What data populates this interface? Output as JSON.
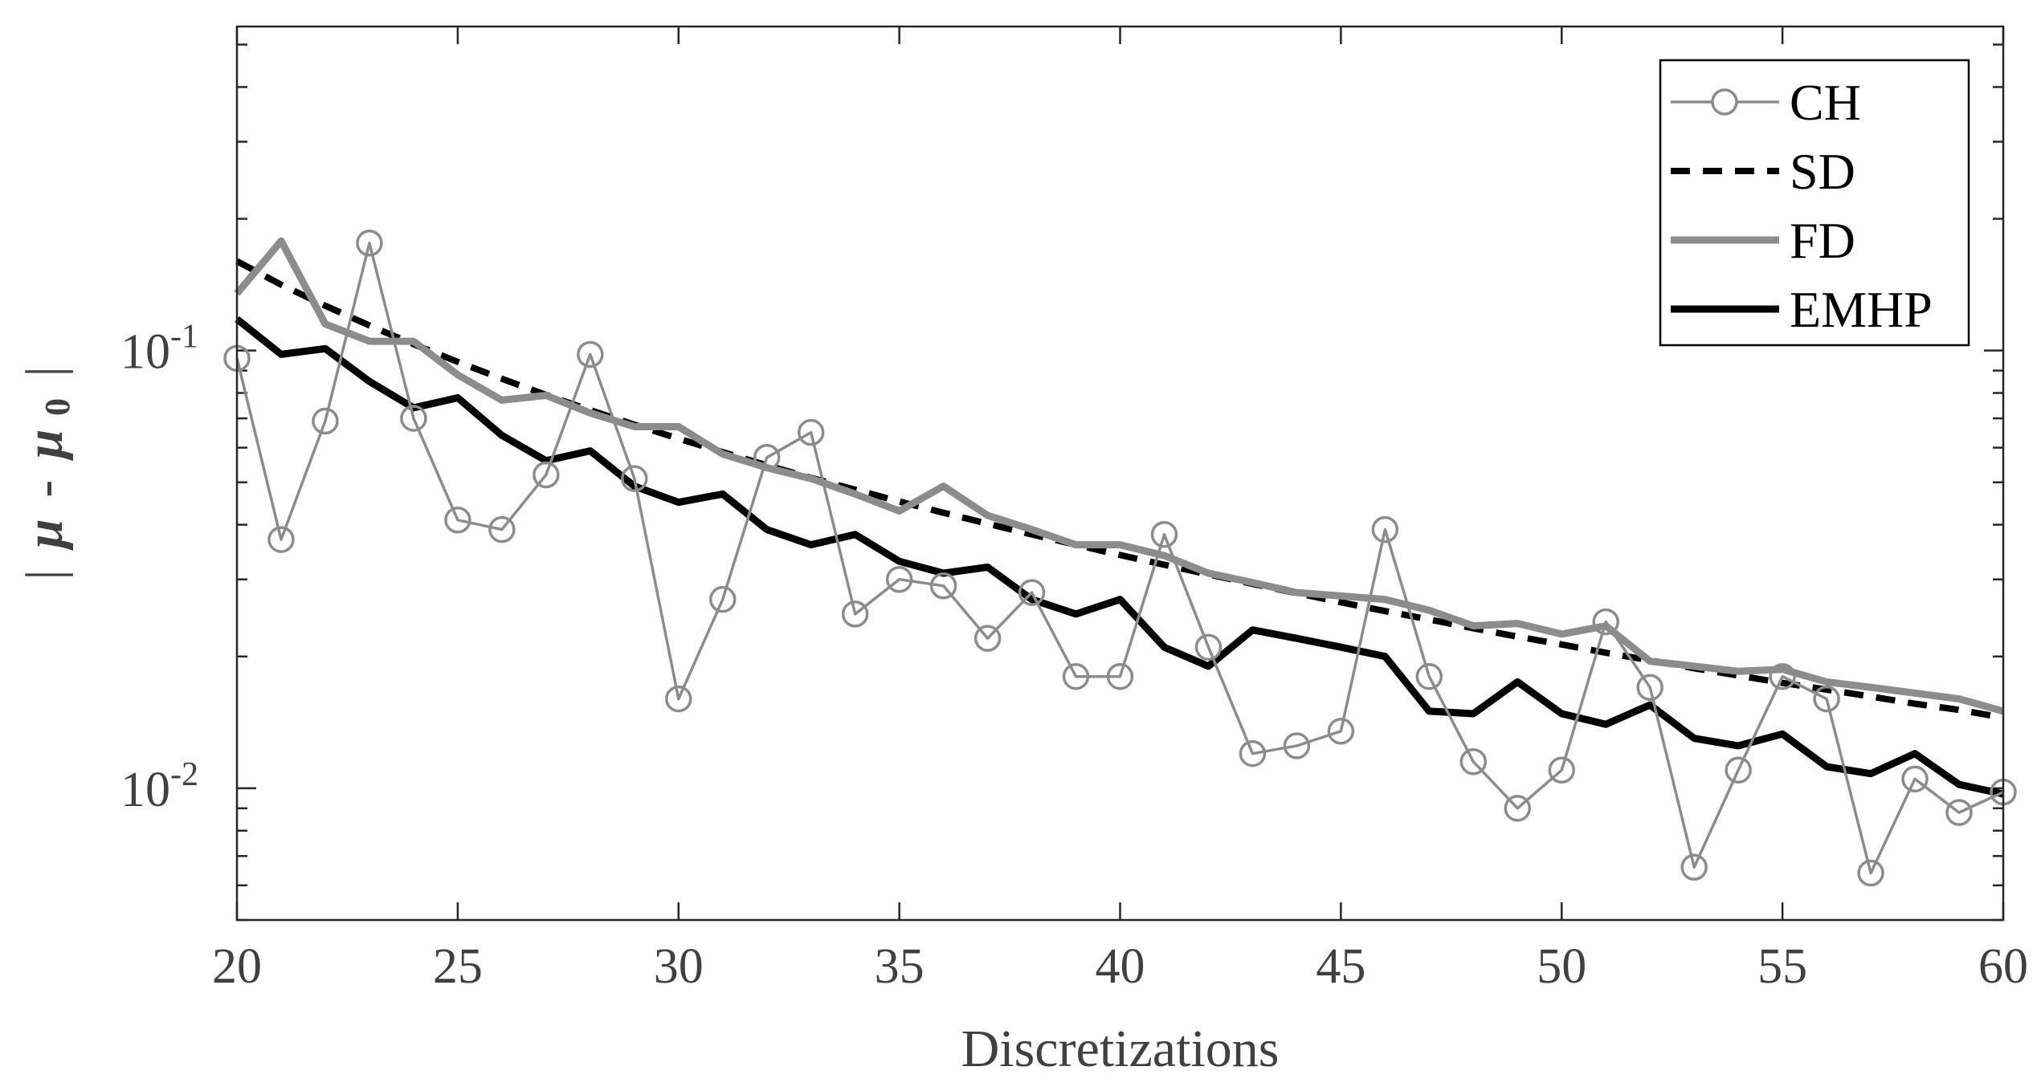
{
  "chart_data": {
    "type": "line",
    "title": "",
    "xlabel": "Discretizations",
    "ylabel": "| μ - μ0 |",
    "ylabel_parts": {
      "open": "|",
      "mu": "μ",
      "minus": "-",
      "mu0": "μ",
      "sub": "0",
      "close": "|"
    },
    "xlim": [
      20,
      60
    ],
    "ylim": [
      0.005,
      0.55
    ],
    "yscale": "log",
    "xticks": [
      20,
      25,
      30,
      35,
      40,
      45,
      50,
      55,
      60
    ],
    "yticks": [
      {
        "value": 0.1,
        "base": "10",
        "exp": "-1"
      },
      {
        "value": 0.01,
        "base": "10",
        "exp": "-2"
      }
    ],
    "legend_position": "top-right",
    "x": [
      20,
      21,
      22,
      23,
      24,
      25,
      26,
      27,
      28,
      29,
      30,
      31,
      32,
      33,
      34,
      35,
      36,
      37,
      38,
      39,
      40,
      41,
      42,
      43,
      44,
      45,
      46,
      47,
      48,
      49,
      50,
      51,
      52,
      53,
      54,
      55,
      56,
      57,
      58,
      59,
      60
    ],
    "series": [
      {
        "name": "CH",
        "color": "#8c8c8c",
        "style": "solid-marker",
        "values": [
          0.096,
          0.037,
          0.069,
          0.176,
          0.07,
          0.041,
          0.039,
          0.052,
          0.098,
          0.051,
          0.016,
          0.027,
          0.057,
          0.065,
          0.025,
          0.03,
          0.029,
          0.022,
          0.028,
          0.018,
          0.018,
          0.038,
          0.021,
          0.012,
          0.0125,
          0.0135,
          0.039,
          0.018,
          0.0115,
          0.009,
          0.011,
          0.024,
          0.017,
          0.0066,
          0.011,
          0.018,
          0.016,
          0.0064,
          0.0105,
          0.0088,
          0.0098
        ]
      },
      {
        "name": "SD",
        "color": "#000000",
        "style": "dashed",
        "values": [
          0.16,
          0.1414,
          0.1266,
          0.1141,
          0.1034,
          0.0942,
          0.0862,
          0.0792,
          0.0731,
          0.0677,
          0.0629,
          0.0586,
          0.0547,
          0.0512,
          0.0481,
          0.0452,
          0.0426,
          0.0402,
          0.038,
          0.036,
          0.0341,
          0.0324,
          0.0308,
          0.0293,
          0.0279,
          0.0266,
          0.0254,
          0.0243,
          0.0232,
          0.0222,
          0.0213,
          0.0204,
          0.0196,
          0.0188,
          0.0181,
          0.0174,
          0.0168,
          0.0162,
          0.0156,
          0.0151,
          0.0145
        ]
      },
      {
        "name": "FD",
        "color": "#8c8c8c",
        "style": "thick",
        "values": [
          0.135,
          0.178,
          0.115,
          0.105,
          0.105,
          0.088,
          0.077,
          0.079,
          0.072,
          0.067,
          0.067,
          0.058,
          0.054,
          0.051,
          0.047,
          0.043,
          0.049,
          0.042,
          0.039,
          0.036,
          0.036,
          0.034,
          0.031,
          0.0295,
          0.028,
          0.0275,
          0.027,
          0.0255,
          0.0235,
          0.0238,
          0.0225,
          0.0235,
          0.0195,
          0.019,
          0.0185,
          0.0187,
          0.0175,
          0.017,
          0.0165,
          0.016,
          0.015
        ]
      },
      {
        "name": "EMHP",
        "color": "#000000",
        "style": "thick",
        "values": [
          0.118,
          0.098,
          0.101,
          0.085,
          0.074,
          0.078,
          0.064,
          0.056,
          0.059,
          0.049,
          0.045,
          0.047,
          0.039,
          0.036,
          0.038,
          0.033,
          0.031,
          0.032,
          0.027,
          0.025,
          0.027,
          0.021,
          0.019,
          0.023,
          0.022,
          0.021,
          0.02,
          0.015,
          0.0148,
          0.0175,
          0.0148,
          0.014,
          0.0155,
          0.013,
          0.0125,
          0.0133,
          0.0112,
          0.0108,
          0.012,
          0.0102,
          0.0097
        ]
      }
    ]
  }
}
